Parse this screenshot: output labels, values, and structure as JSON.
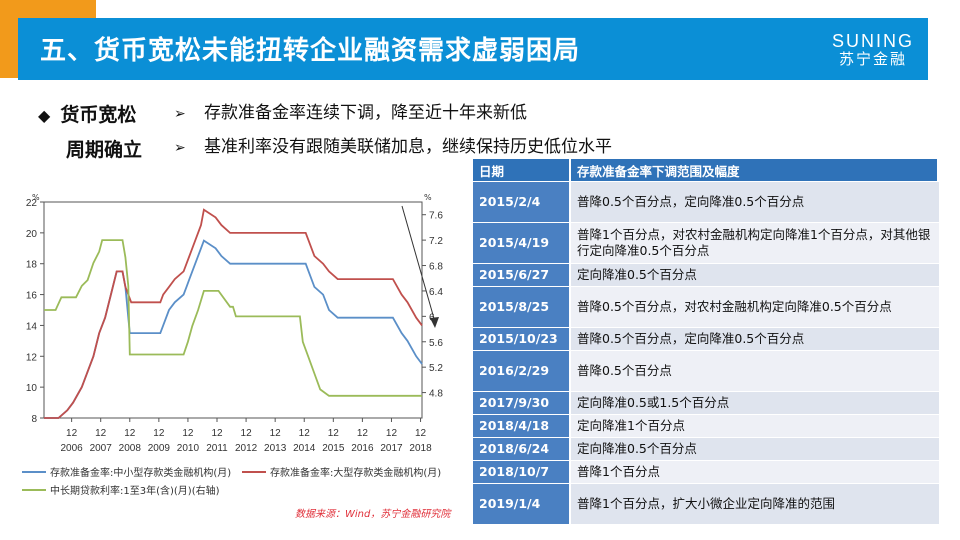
{
  "header": {
    "title": "五、货币宽松未能扭转企业融资需求虚弱困局",
    "logo_en": "SUNING",
    "logo_cn": "苏宁金融"
  },
  "section": {
    "label_line1": "货币宽松",
    "label_line2": "周期确立",
    "bullets": [
      "存款准备金率连续下调，降至近十年来新低",
      "基准利率没有跟随美联储加息，继续保持历史低位水平"
    ]
  },
  "chart_data": {
    "type": "line",
    "left_unit": "%",
    "right_unit": "%",
    "left_ylim": [
      8,
      22
    ],
    "left_ticks": [
      8,
      10,
      12,
      14,
      16,
      18,
      20,
      22
    ],
    "right_ylim": [
      4.4,
      7.8
    ],
    "right_ticks": [
      4.8,
      5.2,
      5.6,
      6.0,
      6.4,
      6.8,
      7.2,
      7.6
    ],
    "x_month_labels": [
      "12",
      "12",
      "12",
      "12",
      "12",
      "12",
      "12",
      "12",
      "12",
      "12",
      "12",
      "12",
      "12"
    ],
    "x_year_labels": [
      "2006",
      "2007",
      "2008",
      "2009",
      "2010",
      "2011",
      "2012",
      "2013",
      "2014",
      "2015",
      "2016",
      "2017",
      "2018"
    ],
    "legend": {
      "small": "存款准备金率:中小型存款类金融机构(月)",
      "large": "存款准备金率:大型存款类金融机构(月)",
      "loan": "中长期贷款利率:1至3年(含)(月)(右轴)"
    },
    "colors": {
      "small": "#5b8fc8",
      "large": "#c0504d",
      "loan": "#9bbb59"
    },
    "series": [
      {
        "key": "small",
        "axis": "left",
        "points": [
          [
            2006.0,
            7.5
          ],
          [
            2006.5,
            8.0
          ],
          [
            2006.8,
            8.5
          ],
          [
            2007.0,
            9.0
          ],
          [
            2007.3,
            10.0
          ],
          [
            2007.5,
            11.0
          ],
          [
            2007.7,
            12.0
          ],
          [
            2007.9,
            13.5
          ],
          [
            2008.1,
            14.5
          ],
          [
            2008.3,
            16.0
          ],
          [
            2008.5,
            17.5
          ],
          [
            2008.7,
            17.5
          ],
          [
            2008.8,
            16.5
          ],
          [
            2008.9,
            14.5
          ],
          [
            2008.95,
            13.5
          ],
          [
            2010.0,
            13.5
          ],
          [
            2010.1,
            14.0
          ],
          [
            2010.3,
            15.0
          ],
          [
            2010.5,
            15.5
          ],
          [
            2010.8,
            16.0
          ],
          [
            2010.9,
            16.5
          ],
          [
            2011.0,
            17.0
          ],
          [
            2011.2,
            18.0
          ],
          [
            2011.4,
            19.0
          ],
          [
            2011.5,
            19.5
          ],
          [
            2011.9,
            19.0
          ],
          [
            2012.1,
            18.5
          ],
          [
            2012.4,
            18.0
          ],
          [
            2015.0,
            18.0
          ],
          [
            2015.1,
            17.5
          ],
          [
            2015.3,
            16.5
          ],
          [
            2015.6,
            16.0
          ],
          [
            2015.8,
            15.0
          ],
          [
            2016.1,
            14.5
          ],
          [
            2017.0,
            14.5
          ],
          [
            2018.0,
            14.5
          ],
          [
            2018.3,
            13.5
          ],
          [
            2018.5,
            13.0
          ],
          [
            2018.8,
            12.0
          ],
          [
            2019.0,
            11.5
          ]
        ]
      },
      {
        "key": "large",
        "axis": "left",
        "points": [
          [
            2006.0,
            7.5
          ],
          [
            2006.5,
            8.0
          ],
          [
            2006.8,
            8.5
          ],
          [
            2007.0,
            9.0
          ],
          [
            2007.3,
            10.0
          ],
          [
            2007.5,
            11.0
          ],
          [
            2007.7,
            12.0
          ],
          [
            2007.9,
            13.5
          ],
          [
            2008.1,
            14.5
          ],
          [
            2008.3,
            16.0
          ],
          [
            2008.5,
            17.5
          ],
          [
            2008.7,
            17.5
          ],
          [
            2008.8,
            16.5
          ],
          [
            2008.9,
            16.0
          ],
          [
            2009.0,
            15.5
          ],
          [
            2010.0,
            15.5
          ],
          [
            2010.1,
            16.0
          ],
          [
            2010.3,
            16.5
          ],
          [
            2010.5,
            17.0
          ],
          [
            2010.8,
            17.5
          ],
          [
            2010.9,
            18.0
          ],
          [
            2011.0,
            18.5
          ],
          [
            2011.2,
            19.5
          ],
          [
            2011.4,
            20.5
          ],
          [
            2011.5,
            21.5
          ],
          [
            2011.9,
            21.0
          ],
          [
            2012.1,
            20.5
          ],
          [
            2012.4,
            20.0
          ],
          [
            2015.0,
            20.0
          ],
          [
            2015.1,
            19.5
          ],
          [
            2015.3,
            18.5
          ],
          [
            2015.6,
            18.0
          ],
          [
            2015.8,
            17.5
          ],
          [
            2016.1,
            17.0
          ],
          [
            2017.0,
            17.0
          ],
          [
            2018.0,
            17.0
          ],
          [
            2018.3,
            16.0
          ],
          [
            2018.5,
            15.5
          ],
          [
            2018.8,
            14.5
          ],
          [
            2019.0,
            14.0
          ]
        ]
      },
      {
        "key": "loan",
        "axis": "right",
        "points": [
          [
            2006.0,
            6.1
          ],
          [
            2006.4,
            6.1
          ],
          [
            2006.6,
            6.3
          ],
          [
            2007.1,
            6.3
          ],
          [
            2007.3,
            6.48
          ],
          [
            2007.5,
            6.57
          ],
          [
            2007.7,
            6.84
          ],
          [
            2007.9,
            7.02
          ],
          [
            2008.0,
            7.2
          ],
          [
            2008.7,
            7.2
          ],
          [
            2008.8,
            6.93
          ],
          [
            2008.9,
            6.48
          ],
          [
            2008.95,
            5.4
          ],
          [
            2010.8,
            5.4
          ],
          [
            2010.95,
            5.6
          ],
          [
            2011.1,
            5.85
          ],
          [
            2011.3,
            6.1
          ],
          [
            2011.5,
            6.4
          ],
          [
            2012.0,
            6.4
          ],
          [
            2012.4,
            6.15
          ],
          [
            2012.5,
            6.15
          ],
          [
            2012.6,
            6.0
          ],
          [
            2014.8,
            6.0
          ],
          [
            2014.9,
            5.6
          ],
          [
            2015.1,
            5.35
          ],
          [
            2015.3,
            5.1
          ],
          [
            2015.5,
            4.85
          ],
          [
            2015.8,
            4.75
          ],
          [
            2019.0,
            4.75
          ]
        ]
      }
    ]
  },
  "source_note": "数据来源：Wind，苏宁金融研究院",
  "table": {
    "headers": [
      "日期",
      "存款准备金率下调范围及幅度"
    ],
    "rows": [
      {
        "date": "2015/2/4",
        "desc": "普降0.5个百分点，定向降准0.5个百分点",
        "tall": true
      },
      {
        "date": "2015/4/19",
        "desc": "普降1个百分点，对农村金融机构定向降准1个百分点，对其他银行定向降准0.5个百分点",
        "tall": true
      },
      {
        "date": "2015/6/27",
        "desc": "定向降准0.5个百分点",
        "tall": false
      },
      {
        "date": "2015/8/25",
        "desc": "普降0.5个百分点，对农村金融机构定向降准0.5个百分点",
        "tall": true
      },
      {
        "date": "2015/10/23",
        "desc": "普降0.5个百分点，定向降准0.5个百分点",
        "tall": false
      },
      {
        "date": "2016/2/29",
        "desc": "普降0.5个百分点",
        "tall": true
      },
      {
        "date": "2017/9/30",
        "desc": "定向降准0.5或1.5个百分点",
        "tall": false
      },
      {
        "date": "2018/4/18",
        "desc": "定向降准1个百分点",
        "tall": false
      },
      {
        "date": "2018/6/24",
        "desc": "定向降准0.5个百分点",
        "tall": false
      },
      {
        "date": "2018/10/7",
        "desc": "普降1个百分点",
        "tall": false
      },
      {
        "date": "2019/1/4",
        "desc": "普降1个百分点，扩大小微企业定向降准的范围",
        "tall": true
      }
    ]
  }
}
